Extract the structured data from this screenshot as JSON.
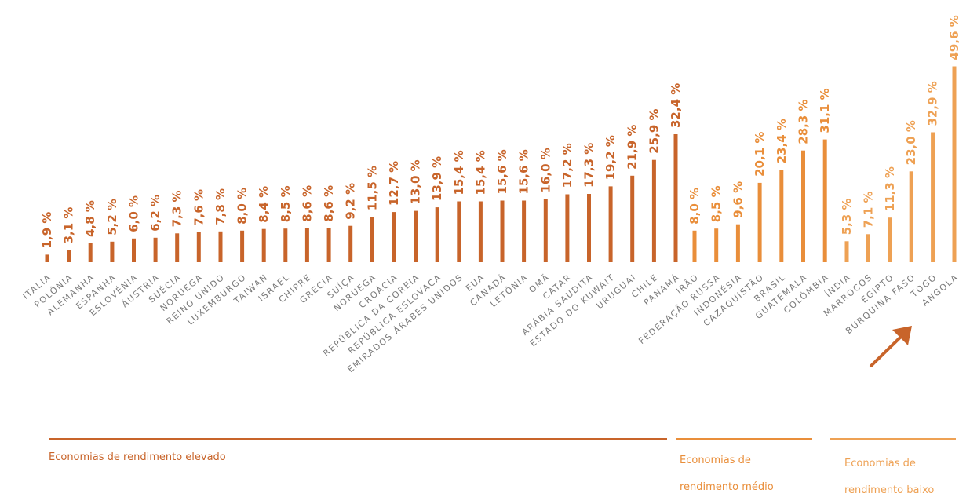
{
  "chart_data": {
    "type": "bar",
    "categories": [
      "ITÁLIA",
      "POLÓNIA",
      "ALEMANHA",
      "ESPANHA",
      "ESLOVÉNIA",
      "ÁUSTRIA",
      "SUÉCIA",
      "NORUEGA",
      "REINO UNIDO",
      "LUXEMBURGO",
      "TAIWAN",
      "ISRAEL",
      "CHIPRE",
      "GRÉCIA",
      "SUÍÇA",
      "NORUEGA",
      "CROÁCIA",
      "REPÚBLICA DA COREIA",
      "REPÚBLICA ESLOVACA",
      "EMIRADOS ÁRABES UNIDOS",
      "EUA",
      "CANADÁ",
      "LETÓNIA",
      "OMÃ",
      "CATAR",
      "ARÁBIA SAUDITA",
      "ESTADO DO KUWAIT",
      "URUGUAI",
      "CHILE",
      "PANAMÁ",
      "IRÃO",
      "FEDERAÇÃO RUSSA",
      "INDONÉSIA",
      "CAZAQUISTÃO",
      "BRASIL",
      "GUATEMALA",
      "COLÔMBIA",
      "ÍNDIA",
      "MARROCOS",
      "EGIPTO",
      "BURQUINA FASO",
      "TOGO",
      "ANGOLA"
    ],
    "values": [
      1.9,
      3.1,
      4.8,
      5.2,
      6.0,
      6.2,
      7.3,
      7.6,
      7.8,
      8.0,
      8.4,
      8.5,
      8.6,
      8.6,
      9.2,
      11.5,
      12.7,
      13.0,
      13.9,
      15.4,
      15.4,
      15.6,
      15.6,
      16.0,
      17.2,
      17.3,
      19.2,
      21.9,
      25.9,
      32.4,
      8.0,
      8.5,
      9.6,
      20.1,
      23.4,
      28.3,
      31.1,
      5.3,
      7.1,
      11.3,
      23.0,
      32.9,
      49.6
    ],
    "value_labels": [
      "1,9 %",
      "3,1 %",
      "4,8 %",
      "5,2 %",
      "6,0 %",
      "6,2 %",
      "7,3 %",
      "7,6 %",
      "7,8 %",
      "8,0 %",
      "8,4 %",
      "8,5 %",
      "8,6 %",
      "8,6 %",
      "9,2 %",
      "11,5 %",
      "12,7 %",
      "13,0 %",
      "13,9 %",
      "15,4 %",
      "15,4 %",
      "15,6 %",
      "15,6 %",
      "16,0 %",
      "17,2 %",
      "17,3 %",
      "19,2 %",
      "21,9 %",
      "25,9 %",
      "32,4 %",
      "8,0 %",
      "8,5 %",
      "9,6 %",
      "20,1 %",
      "23,4 %",
      "28,3 %",
      "31,1 %",
      "5,3 %",
      "7,1 %",
      "11,3 %",
      "23,0 %",
      "32,9 %",
      "49,6 %"
    ],
    "groups": [
      {
        "label": "Economias de rendimento elevado",
        "start": 0,
        "end": 29,
        "color": "#c8642a"
      },
      {
        "label": "Economias de rendimento médio",
        "start": 30,
        "end": 36,
        "color": "#e98e3a"
      },
      {
        "label": "Economias de rendimento baixo",
        "start": 37,
        "end": 42,
        "color": "#eea154"
      }
    ],
    "title": "",
    "xlabel": "",
    "ylabel": "",
    "ylim": [
      0,
      50
    ],
    "grid": false,
    "legend": "bottom",
    "highlight": {
      "category": "ANGOLA",
      "icon": "arrow-up-right-icon",
      "color": "#c8642a"
    }
  }
}
